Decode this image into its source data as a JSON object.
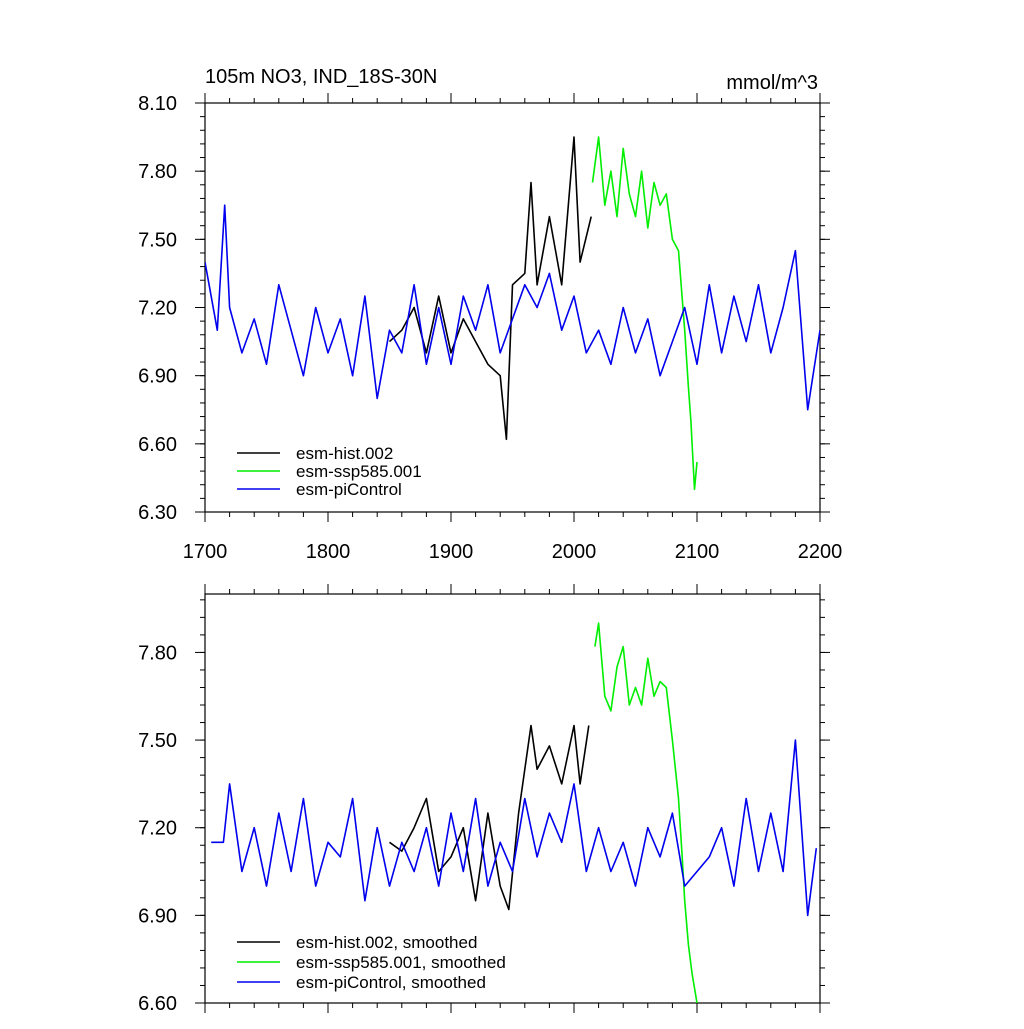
{
  "chart_data": [
    {
      "type": "line",
      "title": "105m NO3, IND_18S-30N",
      "units": "mmol/m^3",
      "xlabel": "",
      "ylabel": "",
      "xlim": [
        1700,
        2200
      ],
      "ylim": [
        6.3,
        8.1
      ],
      "xticks": [
        1700,
        1800,
        1900,
        2000,
        2100,
        2200
      ],
      "xtick_labels": [
        "1700",
        "1800",
        "1900",
        "2000",
        "2100",
        "2200"
      ],
      "yticks": [
        6.3,
        6.6,
        6.9,
        7.2,
        7.5,
        7.8,
        8.1
      ],
      "ytick_labels": [
        "6.30",
        "6.60",
        "6.90",
        "7.20",
        "7.50",
        "7.80",
        "8.10"
      ],
      "grid": false,
      "legend_position": "bottom-left",
      "series": [
        {
          "name": "esm-hist.002",
          "color": "#000000",
          "x": [
            1850,
            1860,
            1870,
            1880,
            1890,
            1900,
            1910,
            1920,
            1930,
            1940,
            1945,
            1950,
            1960,
            1965,
            1970,
            1980,
            1990,
            2000,
            2005,
            2014
          ],
          "y": [
            7.05,
            7.1,
            7.2,
            7.0,
            7.25,
            7.0,
            7.15,
            7.05,
            6.95,
            6.9,
            6.62,
            7.3,
            7.35,
            7.75,
            7.3,
            7.6,
            7.3,
            7.95,
            7.4,
            7.6
          ]
        },
        {
          "name": "esm-ssp585.001",
          "color": "#00ee00",
          "x": [
            2015,
            2020,
            2025,
            2030,
            2035,
            2040,
            2045,
            2050,
            2055,
            2060,
            2065,
            2070,
            2075,
            2080,
            2085,
            2090,
            2093,
            2095,
            2098,
            2100
          ],
          "y": [
            7.75,
            7.95,
            7.65,
            7.8,
            7.6,
            7.9,
            7.7,
            7.6,
            7.8,
            7.55,
            7.75,
            7.65,
            7.7,
            7.5,
            7.45,
            7.1,
            6.85,
            6.7,
            6.4,
            6.52
          ]
        },
        {
          "name": "esm-piControl",
          "color": "#0000ee",
          "x": [
            1700,
            1710,
            1716,
            1720,
            1730,
            1740,
            1750,
            1760,
            1770,
            1780,
            1790,
            1800,
            1810,
            1820,
            1830,
            1840,
            1850,
            1860,
            1870,
            1880,
            1890,
            1900,
            1910,
            1920,
            1930,
            1940,
            1950,
            1960,
            1970,
            1980,
            1990,
            2000,
            2010,
            2020,
            2030,
            2040,
            2050,
            2060,
            2070,
            2080,
            2090,
            2100,
            2110,
            2120,
            2130,
            2140,
            2150,
            2160,
            2170,
            2180,
            2190,
            2200
          ],
          "y": [
            7.4,
            7.1,
            7.65,
            7.2,
            7.0,
            7.15,
            6.95,
            7.3,
            7.1,
            6.9,
            7.2,
            7.0,
            7.15,
            6.9,
            7.25,
            6.8,
            7.1,
            7.0,
            7.3,
            6.95,
            7.2,
            6.95,
            7.25,
            7.1,
            7.3,
            7.0,
            7.15,
            7.3,
            7.2,
            7.35,
            7.1,
            7.25,
            7.0,
            7.1,
            6.95,
            7.2,
            7.0,
            7.15,
            6.9,
            7.05,
            7.2,
            6.95,
            7.3,
            7.0,
            7.25,
            7.05,
            7.3,
            7.0,
            7.2,
            7.45,
            6.75,
            7.1
          ]
        }
      ]
    },
    {
      "type": "line",
      "title": "",
      "xlabel": "",
      "ylabel": "",
      "xlim": [
        1700,
        2200
      ],
      "ylim": [
        6.6,
        8.0
      ],
      "yticks": [
        6.6,
        6.9,
        7.2,
        7.5,
        7.8
      ],
      "ytick_labels": [
        "6.60",
        "6.90",
        "7.20",
        "7.50",
        "7.80"
      ],
      "grid": false,
      "legend_position": "bottom-left",
      "series": [
        {
          "name": "esm-hist.002, smoothed",
          "color": "#000000",
          "x": [
            1850,
            1860,
            1870,
            1880,
            1890,
            1900,
            1910,
            1920,
            1930,
            1940,
            1947,
            1955,
            1960,
            1965,
            1970,
            1980,
            1990,
            2000,
            2005,
            2012
          ],
          "y": [
            7.15,
            7.12,
            7.2,
            7.3,
            7.05,
            7.1,
            7.2,
            6.95,
            7.25,
            7.0,
            6.92,
            7.25,
            7.4,
            7.55,
            7.4,
            7.48,
            7.35,
            7.55,
            7.35,
            7.55
          ]
        },
        {
          "name": "esm-ssp585.001, smoothed",
          "color": "#00ee00",
          "x": [
            2017,
            2020,
            2025,
            2030,
            2035,
            2040,
            2045,
            2050,
            2055,
            2060,
            2065,
            2070,
            2075,
            2080,
            2085,
            2088,
            2090,
            2093,
            2096,
            2100
          ],
          "y": [
            7.82,
            7.9,
            7.65,
            7.6,
            7.75,
            7.82,
            7.62,
            7.68,
            7.62,
            7.78,
            7.65,
            7.7,
            7.68,
            7.5,
            7.3,
            7.1,
            6.95,
            6.8,
            6.7,
            6.6
          ]
        },
        {
          "name": "esm-piControl, smoothed",
          "color": "#0000ee",
          "x": [
            1705,
            1715,
            1720,
            1730,
            1740,
            1750,
            1760,
            1770,
            1780,
            1790,
            1800,
            1810,
            1820,
            1830,
            1840,
            1850,
            1860,
            1870,
            1880,
            1890,
            1900,
            1910,
            1920,
            1930,
            1940,
            1950,
            1960,
            1970,
            1980,
            1990,
            2000,
            2010,
            2020,
            2030,
            2040,
            2050,
            2060,
            2070,
            2080,
            2090,
            2100,
            2110,
            2120,
            2130,
            2140,
            2150,
            2160,
            2170,
            2180,
            2190,
            2197
          ],
          "y": [
            7.15,
            7.15,
            7.35,
            7.05,
            7.2,
            7.0,
            7.25,
            7.05,
            7.3,
            7.0,
            7.15,
            7.1,
            7.3,
            6.95,
            7.2,
            7.0,
            7.15,
            7.05,
            7.2,
            7.0,
            7.25,
            7.05,
            7.3,
            7.0,
            7.15,
            7.05,
            7.3,
            7.1,
            7.25,
            7.15,
            7.35,
            7.05,
            7.2,
            7.05,
            7.15,
            7.0,
            7.2,
            7.1,
            7.25,
            7.0,
            7.05,
            7.1,
            7.2,
            7.0,
            7.3,
            7.05,
            7.25,
            7.05,
            7.5,
            6.9,
            7.13
          ]
        }
      ]
    }
  ]
}
